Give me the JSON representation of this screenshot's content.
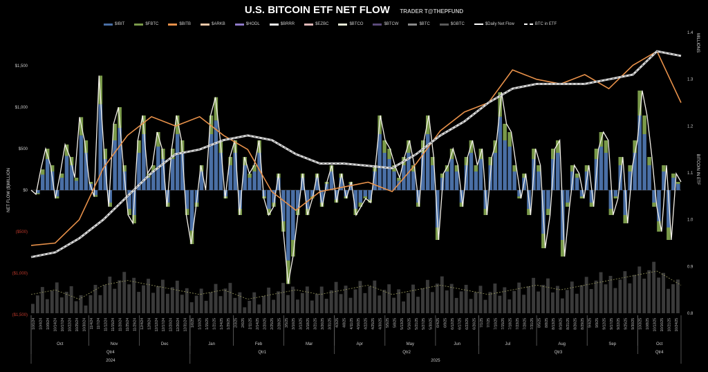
{
  "chart_data": {
    "type": "bar",
    "title": "U.S. BITCOIN ETF NET FLOW",
    "subtitle": "TRADER T@THEPFUND",
    "ylabel": "NET FLOW ($)MILLION",
    "y2label": "BITCOIN IN ETF",
    "y2unit": "MILLIONS",
    "ylim": [
      -1500,
      1500
    ],
    "y2lim": [
      0.8,
      1.4
    ],
    "yticks": [
      "$1,500",
      "$1,000",
      "$500",
      "$0",
      "($500)",
      "($1,000)",
      "($1,500)"
    ],
    "ytick_values": [
      1500,
      1000,
      500,
      0,
      -500,
      -1000,
      -1500
    ],
    "y2ticks": [
      "1.4",
      "1.3",
      "1.2",
      "1.1",
      "1.0",
      "0.9",
      "0.8"
    ],
    "y2tick_values": [
      1.4,
      1.3,
      1.2,
      1.1,
      1.0,
      0.9,
      0.8
    ],
    "legend": [
      {
        "label": "$IBIT",
        "color": "#4a6fa5",
        "style": "bar"
      },
      {
        "label": "$FBTC",
        "color": "#7a9a4a",
        "style": "bar"
      },
      {
        "label": "$BITB",
        "color": "#e8914a",
        "style": "bar"
      },
      {
        "label": "$ARKB",
        "color": "#f2c8a8",
        "style": "bar"
      },
      {
        "label": "$HODL",
        "color": "#8f7ac8",
        "style": "bar"
      },
      {
        "label": "$BRRR",
        "color": "#f2f2f2",
        "style": "bar"
      },
      {
        "label": "$EZBC",
        "color": "#e0b8b8",
        "style": "bar"
      },
      {
        "label": "$BTCO",
        "color": "#e8efd8",
        "style": "bar"
      },
      {
        "label": "$BTCW",
        "color": "#5a4a7a",
        "style": "bar"
      },
      {
        "label": "$BTC",
        "color": "#8a8a8a",
        "style": "bar"
      },
      {
        "label": "$GBTC",
        "color": "#5a5a5a",
        "style": "bar"
      },
      {
        "label": "$Daily Net Flow",
        "color": "#ffffff",
        "style": "line"
      },
      {
        "label": "BTC in ETF",
        "color": "#ffffff",
        "style": "dashed"
      }
    ],
    "months": [
      {
        "label": "Oct",
        "dates": [
          "10/1/24",
          "10/4/24",
          "10/9/24",
          "10/14/24",
          "10/17/24",
          "10/22/24",
          "10/25/24",
          "10/30/24"
        ]
      },
      {
        "label": "Nov",
        "dates": [
          "11/4/24",
          "11/7/24",
          "11/12/24",
          "11/15/24",
          "11/20/24",
          "11/25/24",
          "11/29/24"
        ]
      },
      {
        "label": "Dec",
        "dates": [
          "12/4/24",
          "12/9/24",
          "12/12/24",
          "12/17/24",
          "12/20/24",
          "12/26/24",
          "12/31/24"
        ]
      },
      {
        "label": "Jan",
        "dates": [
          "1/6/25",
          "1/10/25",
          "1/15/25",
          "1/21/25",
          "1/24/25",
          "1/29/25"
        ]
      },
      {
        "label": "Feb",
        "dates": [
          "2/3/25",
          "2/6/25",
          "2/11/25",
          "2/14/25",
          "2/20/25",
          "2/25/25",
          "2/28/25"
        ]
      },
      {
        "label": "Mar",
        "dates": [
          "3/5/25",
          "3/10/25",
          "3/13/25",
          "3/18/25",
          "3/21/25",
          "3/26/25",
          "3/31/25"
        ]
      },
      {
        "label": "Apr",
        "dates": [
          "4/3/25",
          "4/8/25",
          "4/11/25",
          "4/16/25",
          "4/22/25",
          "4/25/25",
          "4/30/25"
        ]
      },
      {
        "label": "May",
        "dates": [
          "5/5/25",
          "5/8/25",
          "5/13/25",
          "5/16/25",
          "5/21/25",
          "5/27/25",
          "5/30/25"
        ]
      },
      {
        "label": "Jun",
        "dates": [
          "6/4/25",
          "6/9/25",
          "6/12/25",
          "6/17/25",
          "6/23/25",
          "6/26/25"
        ]
      },
      {
        "label": "Jul",
        "dates": [
          "7/1/25",
          "7/7/25",
          "7/10/25",
          "7/15/25",
          "7/18/25",
          "7/23/25",
          "7/28/25",
          "7/31/25"
        ]
      },
      {
        "label": "Aug",
        "dates": [
          "8/5/25",
          "8/8/25",
          "8/13/25",
          "8/18/25",
          "8/21/25",
          "8/26/25",
          "8/29/25"
        ]
      },
      {
        "label": "Sep",
        "dates": [
          "9/4/25",
          "9/9/25",
          "9/12/25",
          "9/17/25",
          "9/22/25",
          "9/25/25",
          "9/30/25"
        ]
      },
      {
        "label": "Oct",
        "dates": [
          "10/3/25",
          "10/8/25",
          "10/13/25",
          "10/16/25",
          "10/21/25",
          "10/24/25"
        ]
      }
    ],
    "quarters": [
      {
        "label": "Qtr4",
        "months": [
          0,
          2
        ]
      },
      {
        "label": "Qtr1",
        "months": [
          3,
          5
        ]
      },
      {
        "label": "Qtr2",
        "months": [
          6,
          8
        ]
      },
      {
        "label": "Qtr3",
        "months": [
          9,
          11
        ]
      },
      {
        "label": "Qtr4",
        "months": [
          12,
          12
        ]
      }
    ],
    "years": [
      {
        "label": "2024",
        "months": [
          0,
          2
        ]
      },
      {
        "label": "2025",
        "months": [
          3,
          12
        ]
      }
    ],
    "net_flow": [
      0,
      -50,
      250,
      500,
      300,
      -100,
      200,
      550,
      400,
      150,
      880,
      600,
      100,
      -80,
      1380,
      500,
      -200,
      800,
      1000,
      300,
      -300,
      -400,
      600,
      900,
      200,
      300,
      700,
      500,
      -200,
      500,
      900,
      600,
      -300,
      -650,
      -200,
      300,
      0,
      900,
      1120,
      600,
      -100,
      400,
      600,
      -300,
      400,
      200,
      300,
      600,
      -100,
      -300,
      -200,
      200,
      -500,
      -1130,
      -800,
      -300,
      200,
      -300,
      -100,
      200,
      -200,
      100,
      300,
      -150,
      200,
      -100,
      100,
      -300,
      -200,
      -100,
      -150,
      300,
      900,
      600,
      500,
      300,
      150,
      400,
      600,
      300,
      -200,
      600,
      900,
      400,
      -600,
      200,
      300,
      500,
      300,
      -200,
      400,
      600,
      300,
      500,
      -300,
      400,
      600,
      1180,
      800,
      700,
      300,
      -100,
      200,
      -300,
      500,
      300,
      -700,
      -300,
      500,
      600,
      -800,
      -200,
      300,
      200,
      -100,
      300,
      -200,
      500,
      700,
      600,
      -300,
      -100,
      400,
      -400,
      300,
      600,
      1200,
      900,
      400,
      -200,
      -500,
      300,
      -600,
      200,
      100
    ],
    "ibit_share": 0.75,
    "btc_in_etf": [
      0.92,
      0.93,
      0.96,
      1.0,
      1.05,
      1.1,
      1.14,
      1.15,
      1.17,
      1.18,
      1.17,
      1.14,
      1.12,
      1.12,
      1.115,
      1.11,
      1.14,
      1.18,
      1.21,
      1.25,
      1.28,
      1.29,
      1.29,
      1.29,
      1.3,
      1.31,
      1.36,
      1.35
    ],
    "bitb_line": [
      0.945,
      0.95,
      1.0,
      1.11,
      1.18,
      1.22,
      1.2,
      1.22,
      1.18,
      1.15,
      1.06,
      1.02,
      1.06,
      1.07,
      1.08,
      1.06,
      1.12,
      1.19,
      1.23,
      1.25,
      1.32,
      1.3,
      1.29,
      1.31,
      1.28,
      1.33,
      1.36,
      1.25
    ],
    "volume_index": [
      0.84,
      0.85,
      0.83,
      0.86,
      0.87,
      0.86,
      0.85,
      0.84,
      0.85,
      0.83,
      0.84,
      0.85,
      0.84,
      0.85,
      0.86,
      0.84,
      0.85,
      0.86,
      0.85,
      0.84,
      0.85,
      0.86,
      0.85,
      0.86,
      0.87,
      0.88,
      0.89,
      0.86
    ]
  }
}
